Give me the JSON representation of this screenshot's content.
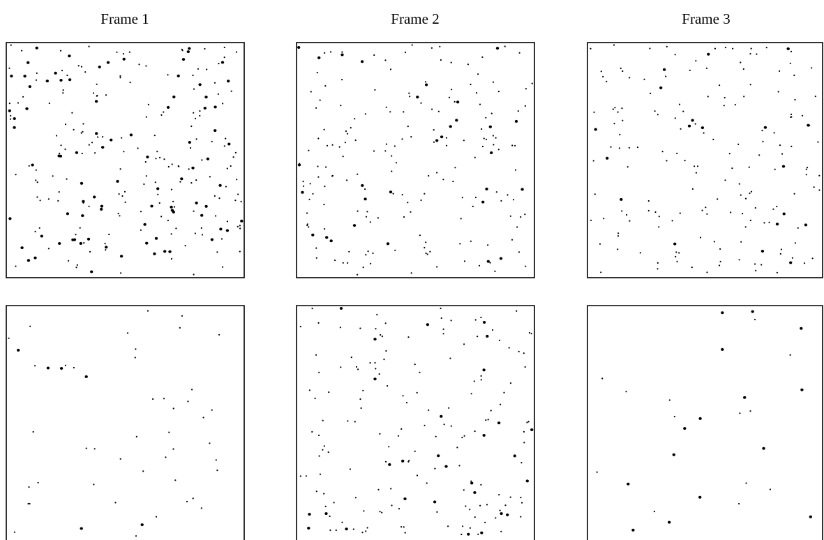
{
  "titles": [
    "Frame 1",
    "Frame 2",
    "Frame 3"
  ]
}
